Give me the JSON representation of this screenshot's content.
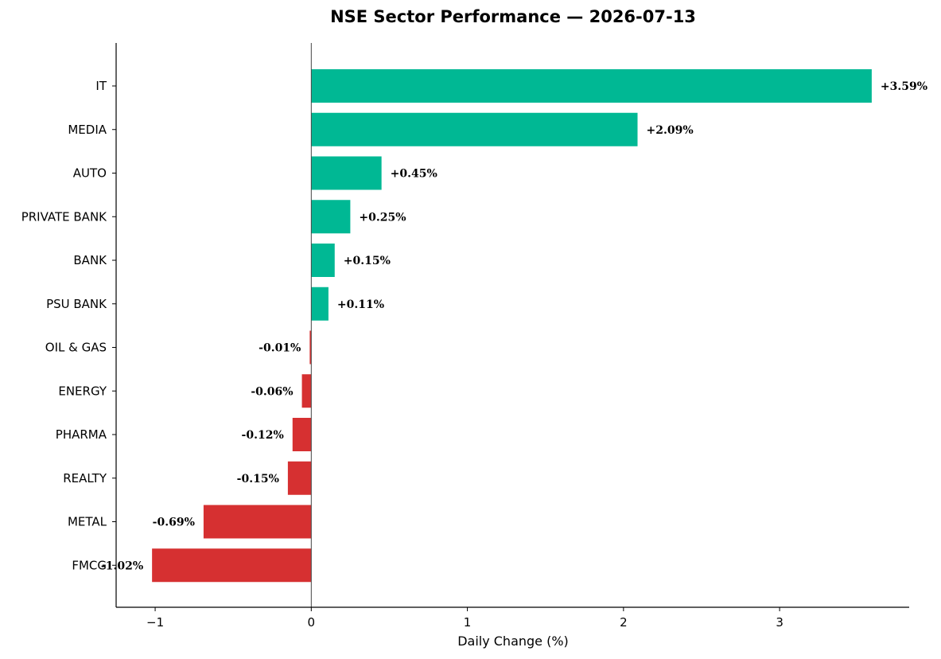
{
  "chart_data": {
    "type": "bar",
    "orientation": "horizontal",
    "title": "NSE Sector Performance — 2026-07-13",
    "xlabel": "Daily Change (%)",
    "ylabel": "",
    "xlim": [
      -1.25,
      3.83
    ],
    "xticks": [
      -1,
      0,
      1,
      2,
      3
    ],
    "xtick_labels": [
      "−1",
      "0",
      "1",
      "2",
      "3"
    ],
    "grid": false,
    "categories": [
      "IT",
      "MEDIA",
      "AUTO",
      "PRIVATE BANK",
      "BANK",
      "PSU BANK",
      "OIL & GAS",
      "ENERGY",
      "PHARMA",
      "REALTY",
      "METAL",
      "FMCG"
    ],
    "values": [
      3.59,
      2.09,
      0.45,
      0.25,
      0.15,
      0.11,
      -0.01,
      -0.06,
      -0.12,
      -0.15,
      -0.69,
      -1.02
    ],
    "data_labels": [
      "+3.59%",
      "+2.09%",
      "+0.45%",
      "+0.25%",
      "+0.15%",
      "+0.11%",
      "-0.01%",
      "-0.06%",
      "-0.12%",
      "-0.15%",
      "-0.69%",
      "-1.02%"
    ],
    "colors": {
      "positive": "#00b894",
      "negative": "#d63031",
      "zero_line": "#444444"
    }
  }
}
